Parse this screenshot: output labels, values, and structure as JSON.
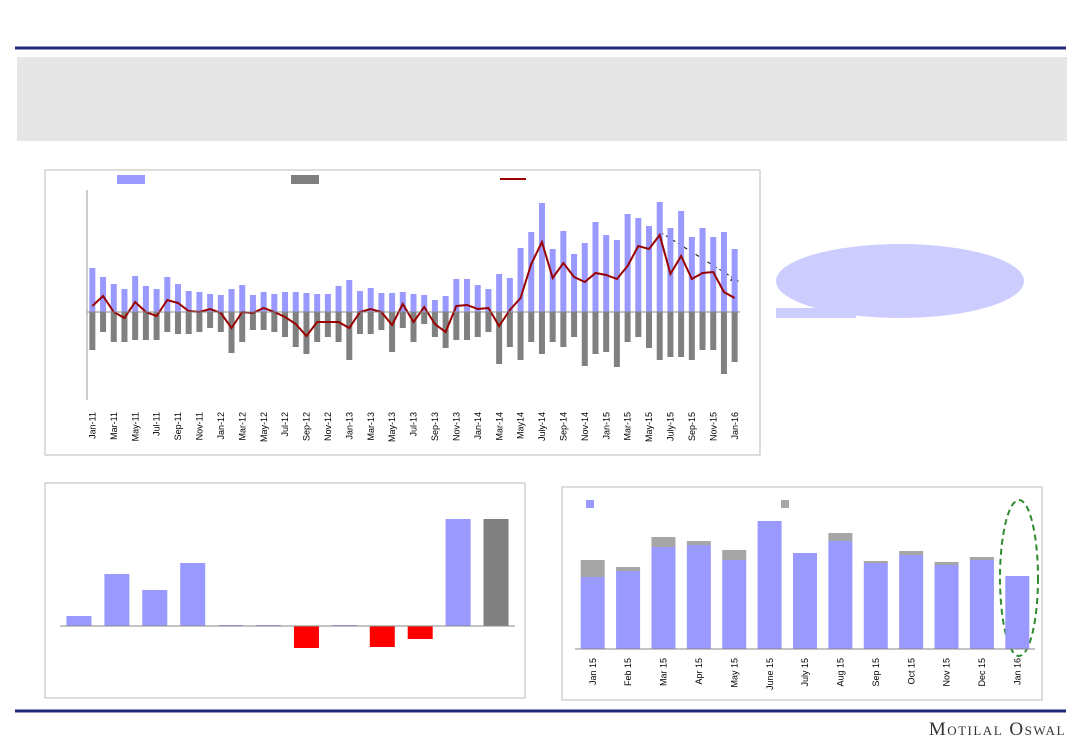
{
  "footer": "Motilal Oswal",
  "chart_data": [
    {
      "type": "combo",
      "categories": [
        "Jan-11",
        null,
        "Mar-11",
        null,
        "May-11",
        null,
        "Jul-11",
        null,
        "Sep-11",
        null,
        "Nov-11",
        null,
        "Jan-12",
        null,
        "Mar-12",
        null,
        "May-12",
        null,
        "Jul-12",
        null,
        "Sep-12",
        null,
        "Nov-12",
        null,
        "Jan-13",
        null,
        "Mar-13",
        null,
        "May-13",
        null,
        "Jul-13",
        null,
        "Sep-13",
        null,
        "Nov-13",
        null,
        "Jan-14",
        null,
        "Mar-14",
        null,
        "May14",
        null,
        "July-14",
        null,
        "Sep-14",
        null,
        "Nov-14",
        null,
        "Jan-15",
        null,
        "Mar-15",
        null,
        "May-15",
        null,
        "July-15",
        null,
        "Sep-15",
        null,
        "Nov-15",
        null,
        "Jan-16"
      ],
      "ylim": [
        -88,
        122
      ],
      "series": [
        {
          "kind": "bar",
          "color": "#9999ff",
          "values": [
            44,
            35,
            28,
            23,
            36,
            26,
            23,
            35,
            28,
            21,
            20,
            18,
            17,
            23,
            27,
            17,
            20,
            18,
            20,
            20,
            19,
            18,
            18,
            26,
            32,
            21,
            24,
            19,
            19,
            20,
            18,
            17,
            12,
            16,
            33,
            33,
            27,
            23,
            38,
            34,
            64,
            80,
            109,
            63,
            81,
            58,
            69,
            90,
            77,
            72,
            98,
            94,
            86,
            110,
            84,
            101,
            75,
            84,
            75,
            80,
            63
          ]
        },
        {
          "kind": "bar",
          "color": "#808080",
          "values": [
            -38,
            -20,
            -30,
            -30,
            -28,
            -28,
            -28,
            -20,
            -22,
            -22,
            -20,
            -16,
            -20,
            -41,
            -30,
            -18,
            -18,
            -20,
            -25,
            -35,
            -42,
            -30,
            -25,
            -30,
            -48,
            -22,
            -22,
            -18,
            -40,
            -16,
            -30,
            -12,
            -25,
            -36,
            -28,
            -28,
            -25,
            -20,
            -52,
            -35,
            -48,
            -30,
            -42,
            -30,
            -35,
            -25,
            -54,
            -42,
            -40,
            -55,
            -30,
            -25,
            -36,
            -48,
            -45,
            -45,
            -48,
            -38,
            -38,
            -62,
            -50
          ]
        },
        {
          "kind": "line",
          "color": "#990000",
          "values": [
            6,
            16,
            0,
            -6,
            10,
            0,
            -4,
            12,
            9,
            1,
            0,
            3,
            -1,
            -16,
            0,
            -1,
            4,
            0,
            -5,
            -12,
            -24,
            -10,
            -10,
            -10,
            -16,
            0,
            3,
            0,
            -13,
            8,
            -10,
            5,
            -12,
            -20,
            6,
            7,
            3,
            4,
            -14,
            2,
            14,
            48,
            70,
            34,
            49,
            35,
            30,
            39,
            37,
            33,
            46,
            66,
            63,
            77,
            38,
            56,
            33,
            39,
            40,
            20,
            14
          ]
        }
      ]
    },
    {
      "type": "bar",
      "values": [
        10,
        52,
        36,
        63,
        1,
        1,
        -22,
        1,
        -21,
        -13,
        107,
        107
      ],
      "colors": [
        "#9999ff",
        "#9999ff",
        "#9999ff",
        "#9999ff",
        "#9999ff",
        "#9999ff",
        "#ff0000",
        "#9999ff",
        "#ff0000",
        "#ff0000",
        "#9999ff",
        "#808080"
      ],
      "ylim": [
        -64,
        134
      ]
    },
    {
      "type": "stacked_bar",
      "categories": [
        "Jan 15",
        "Feb 15",
        "Mar 15",
        "Apr 15",
        "May 15",
        "June 15",
        "July 15",
        "Aug 15",
        "Sep 15",
        "Oct 15",
        "Nov 15",
        "Dec 15",
        "Jan 16"
      ],
      "ylim": [
        0,
        150
      ],
      "series": [
        {
          "color": "#9999ff",
          "values": [
            72,
            78,
            102,
            104,
            89,
            128,
            96,
            108,
            86,
            94,
            84,
            89,
            73
          ]
        },
        {
          "color": "#a6a6a6",
          "values": [
            17,
            4,
            10,
            4,
            10,
            0,
            0,
            8,
            2,
            4,
            3,
            3,
            0
          ]
        }
      ]
    }
  ]
}
